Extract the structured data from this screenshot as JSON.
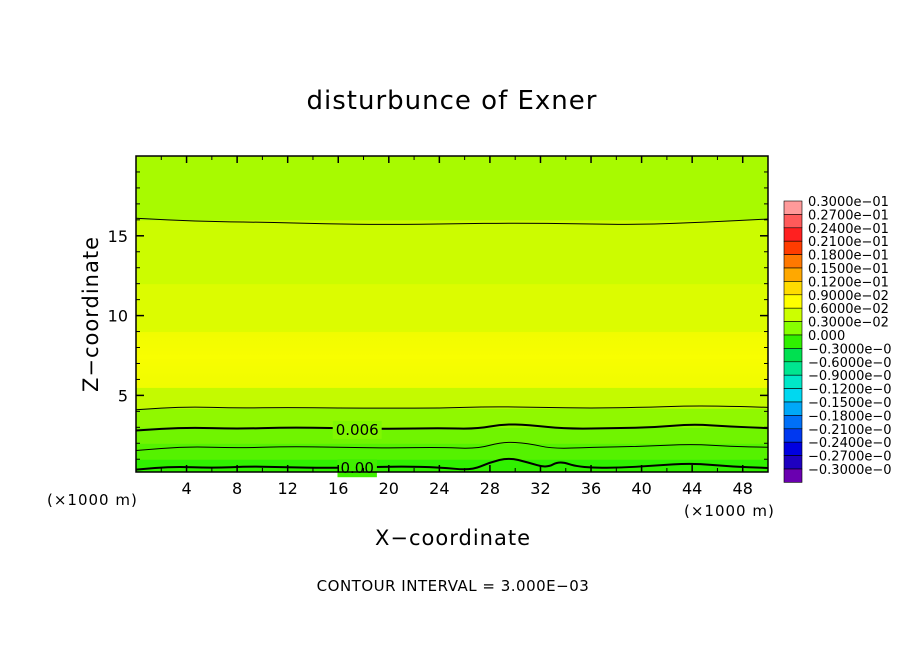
{
  "chart_data": {
    "type": "heatmap",
    "title": "disturbunce of Exner",
    "xlabel": "X−coordinate",
    "ylabel": "Z−coordinate",
    "x_units": "(×1000 m)",
    "x_units_right": "(×1000 m)",
    "xlim": [
      0,
      50
    ],
    "ylim": [
      0.2,
      20
    ],
    "x_ticks": [
      4,
      8,
      12,
      16,
      20,
      24,
      28,
      32,
      36,
      40,
      44,
      48
    ],
    "x_tick_labels": [
      "4",
      "8",
      "12",
      "16",
      "20",
      "24",
      "28",
      "32",
      "36",
      "40",
      "44",
      "48"
    ],
    "y_ticks": [
      5,
      10,
      15
    ],
    "y_tick_labels": [
      "5",
      "10",
      "15"
    ],
    "contour_interval_text": "CONTOUR INTERVAL = 3.000E−03",
    "contour_labels": [
      {
        "text": "0.006",
        "x": 17.5,
        "z": 2.9
      },
      {
        "text": "0.00",
        "x": 17.5,
        "z": 0.5
      }
    ],
    "colorbar": {
      "levels": [
        "0.3000e−01",
        "0.2700e−01",
        "0.2400e−01",
        "0.2100e−01",
        "0.1800e−01",
        "0.1500e−01",
        "0.1200e−01",
        "0.9000e−02",
        "0.6000e−02",
        "0.3000e−02",
        "0.000",
        "−0.3000e−0",
        "−0.6000e−0",
        "−0.9000e−0",
        "−0.1200e−0",
        "−0.1500e−0",
        "−0.1800e−0",
        "−0.2100e−0",
        "−0.2400e−0",
        "−0.2700e−0",
        "−0.3000e−0"
      ],
      "colors": [
        "#ff9a9a",
        "#ff5a5a",
        "#ff2020",
        "#ff3c00",
        "#ff7800",
        "#ffa800",
        "#ffdc00",
        "#ffff00",
        "#ccff00",
        "#88ff00",
        "#30f000",
        "#00e050",
        "#00e690",
        "#00e8c8",
        "#00d8f0",
        "#00a8f8",
        "#0070f8",
        "#0038f0",
        "#0000e0",
        "#1e00c0",
        "#6a00b0"
      ]
    },
    "field_bands": [
      {
        "z_from": 0.2,
        "z_to": 1.0,
        "color": "#30f000"
      },
      {
        "z_from": 1.0,
        "z_to": 2.0,
        "color": "#55f200"
      },
      {
        "z_from": 2.0,
        "z_to": 3.0,
        "color": "#70f400"
      },
      {
        "z_from": 3.0,
        "z_to": 4.2,
        "color": "#90f800"
      },
      {
        "z_from": 4.2,
        "z_to": 5.5,
        "color": "#c4fa00"
      },
      {
        "z_from": 5.5,
        "z_to": 9.0,
        "color": "#f0fc00"
      },
      {
        "z_from": 9.0,
        "z_to": 12.0,
        "color": "#dcfc00"
      },
      {
        "z_from": 12.0,
        "z_to": 16.0,
        "color": "#ccfc00"
      },
      {
        "z_from": 16.0,
        "z_to": 20.0,
        "color": "#a8fa00"
      }
    ],
    "contour_lines": [
      {
        "weight": "heavy",
        "points": [
          [
            0,
            0.35
          ],
          [
            3,
            0.55
          ],
          [
            6,
            0.45
          ],
          [
            9,
            0.55
          ],
          [
            12,
            0.5
          ],
          [
            15,
            0.45
          ],
          [
            18,
            0.5
          ],
          [
            21,
            0.55
          ],
          [
            24,
            0.5
          ],
          [
            26.5,
            0.3
          ],
          [
            28,
            0.8
          ],
          [
            29.5,
            1.1
          ],
          [
            31,
            0.8
          ],
          [
            32.5,
            0.45
          ],
          [
            33.5,
            0.9
          ],
          [
            35,
            0.5
          ],
          [
            38,
            0.45
          ],
          [
            41,
            0.6
          ],
          [
            44,
            0.75
          ],
          [
            47,
            0.55
          ],
          [
            50,
            0.45
          ]
        ]
      },
      {
        "weight": "light",
        "points": [
          [
            0,
            1.55
          ],
          [
            4,
            1.8
          ],
          [
            8,
            1.7
          ],
          [
            12,
            1.8
          ],
          [
            16,
            1.75
          ],
          [
            20,
            1.7
          ],
          [
            24,
            1.75
          ],
          [
            27,
            1.65
          ],
          [
            29,
            2.1
          ],
          [
            31,
            2.0
          ],
          [
            33,
            1.65
          ],
          [
            36,
            1.75
          ],
          [
            40,
            1.8
          ],
          [
            44,
            1.95
          ],
          [
            47,
            1.8
          ],
          [
            50,
            1.75
          ]
        ]
      },
      {
        "weight": "heavy",
        "points": [
          [
            0,
            2.8
          ],
          [
            4,
            3.0
          ],
          [
            8,
            2.9
          ],
          [
            12,
            3.0
          ],
          [
            16,
            2.95
          ],
          [
            20,
            2.9
          ],
          [
            24,
            2.95
          ],
          [
            27,
            2.9
          ],
          [
            29,
            3.2
          ],
          [
            31,
            3.15
          ],
          [
            34,
            2.9
          ],
          [
            38,
            2.95
          ],
          [
            41,
            3.0
          ],
          [
            44,
            3.2
          ],
          [
            47,
            3.05
          ],
          [
            50,
            2.95
          ]
        ]
      },
      {
        "weight": "light",
        "points": [
          [
            0,
            4.1
          ],
          [
            4,
            4.3
          ],
          [
            8,
            4.2
          ],
          [
            12,
            4.25
          ],
          [
            16,
            4.2
          ],
          [
            20,
            4.2
          ],
          [
            24,
            4.2
          ],
          [
            28,
            4.3
          ],
          [
            32,
            4.25
          ],
          [
            36,
            4.2
          ],
          [
            40,
            4.25
          ],
          [
            44,
            4.35
          ],
          [
            48,
            4.3
          ],
          [
            50,
            4.25
          ]
        ]
      },
      {
        "weight": "light",
        "points": [
          [
            0,
            16.1
          ],
          [
            5,
            15.9
          ],
          [
            10,
            15.85
          ],
          [
            15,
            15.75
          ],
          [
            20,
            15.7
          ],
          [
            25,
            15.75
          ],
          [
            30,
            15.8
          ],
          [
            35,
            15.75
          ],
          [
            40,
            15.7
          ],
          [
            45,
            15.85
          ],
          [
            50,
            16.05
          ]
        ]
      }
    ]
  }
}
